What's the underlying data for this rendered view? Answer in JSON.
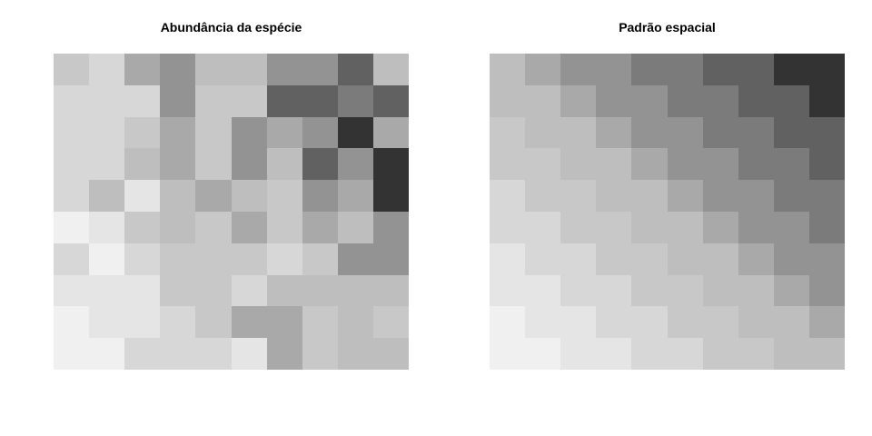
{
  "chart_data": [
    {
      "type": "heatmap",
      "title": "Abundância da espécie",
      "colormap": "grayscale",
      "rows": 10,
      "cols": 10,
      "values": [
        [
          "#c8c8c8",
          "#d7d7d7",
          "#a9a9a9",
          "#939393",
          "#bebebe",
          "#bebebe",
          "#939393",
          "#939393",
          "#616161",
          "#bebebe"
        ],
        [
          "#d7d7d7",
          "#d7d7d7",
          "#d7d7d7",
          "#939393",
          "#c8c8c8",
          "#c8c8c8",
          "#616161",
          "#616161",
          "#7b7b7b",
          "#616161"
        ],
        [
          "#d7d7d7",
          "#d7d7d7",
          "#c8c8c8",
          "#a9a9a9",
          "#c8c8c8",
          "#939393",
          "#a9a9a9",
          "#939393",
          "#333333",
          "#a9a9a9"
        ],
        [
          "#d7d7d7",
          "#d7d7d7",
          "#bebebe",
          "#a9a9a9",
          "#c8c8c8",
          "#939393",
          "#bebebe",
          "#616161",
          "#939393",
          "#333333"
        ],
        [
          "#d7d7d7",
          "#bebebe",
          "#e5e5e5",
          "#bebebe",
          "#a9a9a9",
          "#bebebe",
          "#c8c8c8",
          "#939393",
          "#a9a9a9",
          "#333333"
        ],
        [
          "#f0f0f0",
          "#e5e5e5",
          "#c8c8c8",
          "#bebebe",
          "#c8c8c8",
          "#a9a9a9",
          "#c8c8c8",
          "#a9a9a9",
          "#bebebe",
          "#939393"
        ],
        [
          "#d7d7d7",
          "#f0f0f0",
          "#d7d7d7",
          "#c8c8c8",
          "#c8c8c8",
          "#c8c8c8",
          "#d7d7d7",
          "#c8c8c8",
          "#939393",
          "#939393"
        ],
        [
          "#e5e5e5",
          "#e5e5e5",
          "#e5e5e5",
          "#c8c8c8",
          "#c8c8c8",
          "#d7d7d7",
          "#bebebe",
          "#bebebe",
          "#bebebe",
          "#bebebe"
        ],
        [
          "#f0f0f0",
          "#e5e5e5",
          "#e5e5e5",
          "#d7d7d7",
          "#c8c8c8",
          "#a9a9a9",
          "#a9a9a9",
          "#c8c8c8",
          "#bebebe",
          "#c8c8c8"
        ],
        [
          "#f0f0f0",
          "#f0f0f0",
          "#d7d7d7",
          "#d7d7d7",
          "#d7d7d7",
          "#e5e5e5",
          "#a9a9a9",
          "#c8c8c8",
          "#bebebe",
          "#bebebe"
        ]
      ]
    },
    {
      "type": "heatmap",
      "title": "Padrão espacial",
      "colormap": "grayscale",
      "rows": 10,
      "cols": 10,
      "values": [
        [
          "#bebebe",
          "#a9a9a9",
          "#939393",
          "#939393",
          "#7b7b7b",
          "#7b7b7b",
          "#616161",
          "#616161",
          "#333333",
          "#333333"
        ],
        [
          "#bebebe",
          "#bebebe",
          "#a9a9a9",
          "#939393",
          "#939393",
          "#7b7b7b",
          "#7b7b7b",
          "#616161",
          "#616161",
          "#333333"
        ],
        [
          "#c8c8c8",
          "#bebebe",
          "#bebebe",
          "#a9a9a9",
          "#939393",
          "#939393",
          "#7b7b7b",
          "#7b7b7b",
          "#616161",
          "#616161"
        ],
        [
          "#c8c8c8",
          "#c8c8c8",
          "#bebebe",
          "#bebebe",
          "#a9a9a9",
          "#939393",
          "#939393",
          "#7b7b7b",
          "#7b7b7b",
          "#616161"
        ],
        [
          "#d7d7d7",
          "#c8c8c8",
          "#c8c8c8",
          "#bebebe",
          "#bebebe",
          "#a9a9a9",
          "#939393",
          "#939393",
          "#7b7b7b",
          "#7b7b7b"
        ],
        [
          "#d7d7d7",
          "#d7d7d7",
          "#c8c8c8",
          "#c8c8c8",
          "#bebebe",
          "#bebebe",
          "#a9a9a9",
          "#939393",
          "#939393",
          "#7b7b7b"
        ],
        [
          "#e5e5e5",
          "#d7d7d7",
          "#d7d7d7",
          "#c8c8c8",
          "#c8c8c8",
          "#bebebe",
          "#bebebe",
          "#a9a9a9",
          "#939393",
          "#939393"
        ],
        [
          "#e5e5e5",
          "#e5e5e5",
          "#d7d7d7",
          "#d7d7d7",
          "#c8c8c8",
          "#c8c8c8",
          "#bebebe",
          "#bebebe",
          "#a9a9a9",
          "#939393"
        ],
        [
          "#f0f0f0",
          "#e5e5e5",
          "#e5e5e5",
          "#d7d7d7",
          "#d7d7d7",
          "#c8c8c8",
          "#c8c8c8",
          "#bebebe",
          "#bebebe",
          "#a9a9a9"
        ],
        [
          "#f0f0f0",
          "#f0f0f0",
          "#e5e5e5",
          "#e5e5e5",
          "#d7d7d7",
          "#d7d7d7",
          "#c8c8c8",
          "#c8c8c8",
          "#bebebe",
          "#bebebe"
        ]
      ]
    }
  ]
}
